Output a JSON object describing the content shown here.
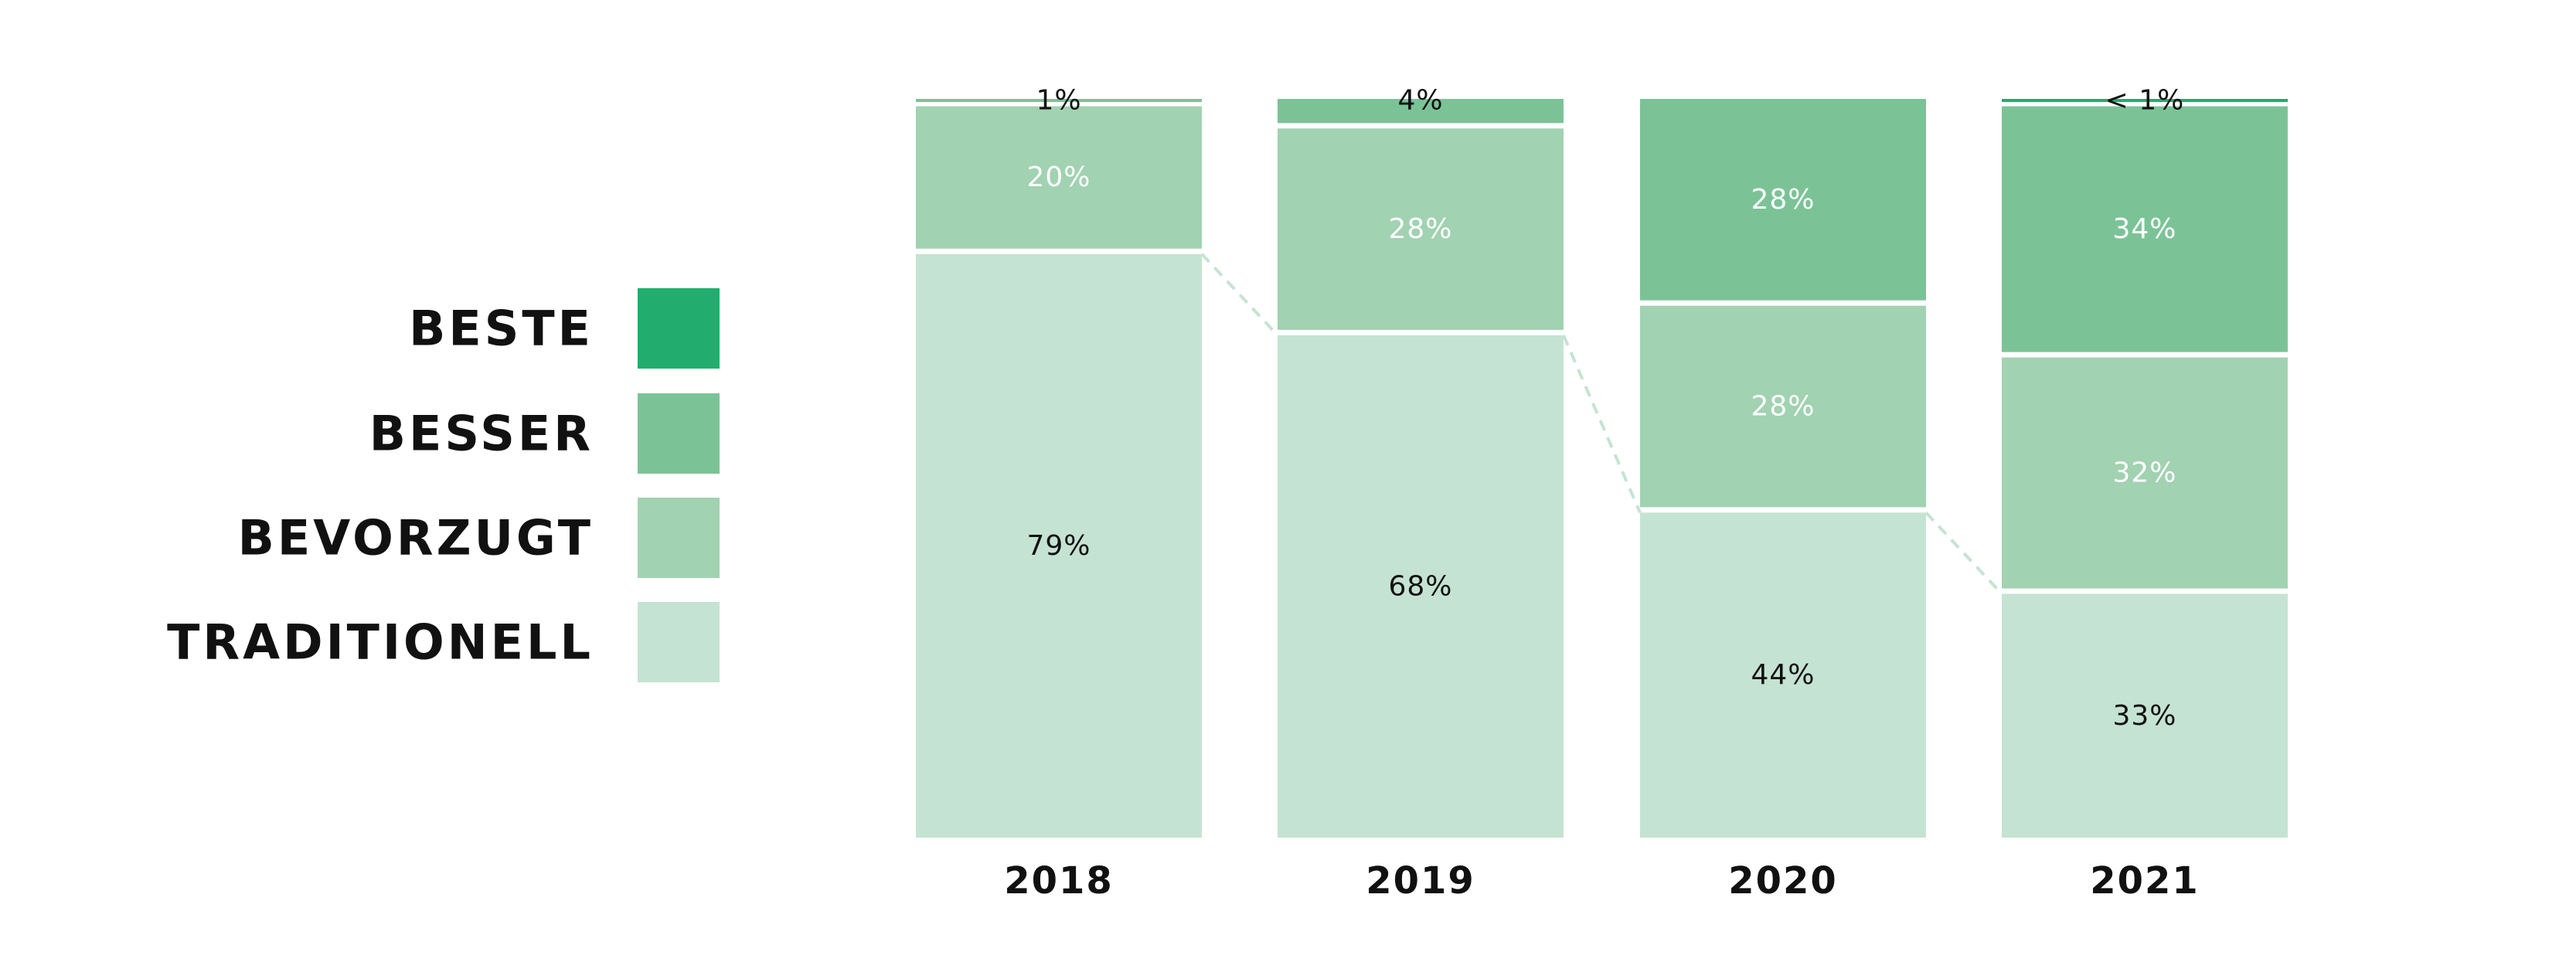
{
  "colors": {
    "BESTE": "#22ad6e",
    "BESSER": "#7bc397",
    "BEVORZUGT": "#a1d2b1",
    "TRADITIONELL": "#c5e3d2",
    "connector": "#c5e3d2",
    "label_dark": "#111111",
    "label_light": "#ffffff"
  },
  "legend": [
    {
      "label": "BESTE",
      "icon": "beste-swatch"
    },
    {
      "label": "BESSER",
      "icon": "besser-swatch"
    },
    {
      "label": "BEVORZUGT",
      "icon": "bevorzugt-swatch"
    },
    {
      "label": "TRADITIONELL",
      "icon": "traditionell-swatch"
    }
  ],
  "chart_data": {
    "type": "bar",
    "stacked": true,
    "categories": [
      "2018",
      "2019",
      "2020",
      "2021"
    ],
    "series": [
      {
        "name": "TRADITIONELL",
        "values": [
          79,
          68,
          44,
          33
        ],
        "labels": [
          "79%",
          "68%",
          "44%",
          "33%"
        ]
      },
      {
        "name": "BEVORZUGT",
        "values": [
          20,
          28,
          28,
          32
        ],
        "labels": [
          "20%",
          "28%",
          "28%",
          "32%"
        ]
      },
      {
        "name": "BESSER",
        "values": [
          1,
          4,
          28,
          34
        ],
        "labels": [
          "1%",
          "4%",
          "28%",
          "34%"
        ]
      },
      {
        "name": "BESTE",
        "values": [
          0,
          0,
          0,
          1
        ],
        "labels": [
          "",
          "",
          "",
          "< 1%"
        ]
      }
    ],
    "ylim": [
      0,
      100
    ],
    "legend_position": "left",
    "grid": false,
    "connector_lines": "dashed lines link the top of the TRADITIONELL segment between consecutive bars"
  }
}
